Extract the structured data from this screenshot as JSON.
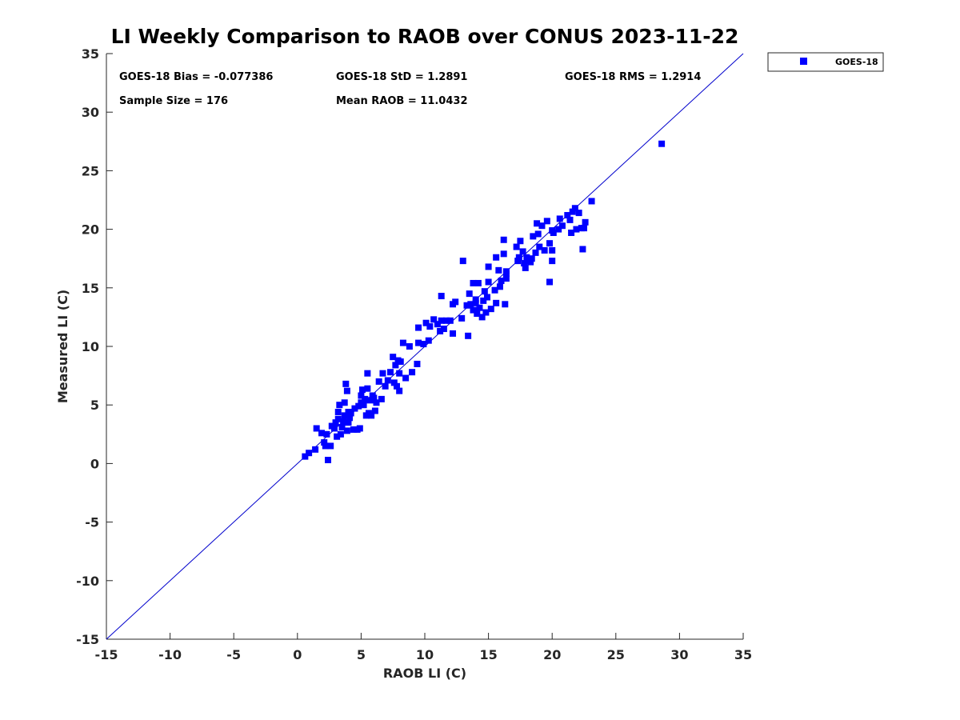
{
  "chart_data": {
    "type": "scatter",
    "title": "LI Weekly Comparison to RAOB over CONUS 2023-11-22",
    "xlabel": "RAOB LI (C)",
    "ylabel": "Measured LI (C)",
    "xlim": [
      -15,
      35
    ],
    "ylim": [
      -15,
      35
    ],
    "xticks": [
      -15,
      -10,
      -5,
      0,
      5,
      10,
      15,
      20,
      25,
      30,
      35
    ],
    "yticks": [
      -15,
      -10,
      -5,
      0,
      5,
      10,
      15,
      20,
      25,
      30,
      35
    ],
    "grid": false,
    "reference_line": {
      "label": "1:1 line",
      "from": [
        -15,
        -15
      ],
      "to": [
        35,
        35
      ],
      "color": "#0000cc"
    },
    "legend": {
      "position": "outside-top-right",
      "entries": [
        "GOES-18"
      ]
    },
    "stats": {
      "bias": "GOES-18 Bias = -0.077386",
      "std": "GOES-18 StD = 1.2891",
      "rms": "GOES-18 RMS = 1.2914",
      "sample_size": "Sample Size = 176",
      "mean_raob": "Mean RAOB = 11.0432"
    },
    "series": [
      {
        "name": "GOES-18",
        "color": "#0000ff",
        "marker": "square",
        "points": [
          [
            0.6,
            0.6
          ],
          [
            0.9,
            0.9
          ],
          [
            1.4,
            1.2
          ],
          [
            1.5,
            3.0
          ],
          [
            1.9,
            2.6
          ],
          [
            2.1,
            1.8
          ],
          [
            2.2,
            1.5
          ],
          [
            2.3,
            2.5
          ],
          [
            2.4,
            0.3
          ],
          [
            2.6,
            1.5
          ],
          [
            2.7,
            3.2
          ],
          [
            2.9,
            3.0
          ],
          [
            3.0,
            3.5
          ],
          [
            3.1,
            2.3
          ],
          [
            3.2,
            3.8
          ],
          [
            3.2,
            4.4
          ],
          [
            3.3,
            5.0
          ],
          [
            3.4,
            2.5
          ],
          [
            3.5,
            3.1
          ],
          [
            3.6,
            3.6
          ],
          [
            3.7,
            4.1
          ],
          [
            3.7,
            5.2
          ],
          [
            3.8,
            6.8
          ],
          [
            3.9,
            2.8
          ],
          [
            3.9,
            6.2
          ],
          [
            4.0,
            3.5
          ],
          [
            4.0,
            4.4
          ],
          [
            4.1,
            3.9
          ],
          [
            4.2,
            4.3
          ],
          [
            4.4,
            2.9
          ],
          [
            4.5,
            4.7
          ],
          [
            4.7,
            2.9
          ],
          [
            4.8,
            4.9
          ],
          [
            4.9,
            3.0
          ],
          [
            5.0,
            5.2
          ],
          [
            5.0,
            5.8
          ],
          [
            5.1,
            6.3
          ],
          [
            5.2,
            5.0
          ],
          [
            5.3,
            5.5
          ],
          [
            5.4,
            4.1
          ],
          [
            5.5,
            6.4
          ],
          [
            5.5,
            7.7
          ],
          [
            5.6,
            4.3
          ],
          [
            5.7,
            5.4
          ],
          [
            5.8,
            4.1
          ],
          [
            5.9,
            5.8
          ],
          [
            6.0,
            5.6
          ],
          [
            6.1,
            4.5
          ],
          [
            6.2,
            5.2
          ],
          [
            6.4,
            7.0
          ],
          [
            6.6,
            5.5
          ],
          [
            6.7,
            7.7
          ],
          [
            6.9,
            6.6
          ],
          [
            7.1,
            7.1
          ],
          [
            7.3,
            7.8
          ],
          [
            7.5,
            9.1
          ],
          [
            7.6,
            6.9
          ],
          [
            7.7,
            8.4
          ],
          [
            7.8,
            6.6
          ],
          [
            7.9,
            8.8
          ],
          [
            8.0,
            7.7
          ],
          [
            8.0,
            6.2
          ],
          [
            8.1,
            8.7
          ],
          [
            8.3,
            10.3
          ],
          [
            8.5,
            7.3
          ],
          [
            8.8,
            10.0
          ],
          [
            9.0,
            7.8
          ],
          [
            9.4,
            8.5
          ],
          [
            9.5,
            10.3
          ],
          [
            9.5,
            11.6
          ],
          [
            9.9,
            10.2
          ],
          [
            10.1,
            12.0
          ],
          [
            10.3,
            10.5
          ],
          [
            10.4,
            11.7
          ],
          [
            10.7,
            12.3
          ],
          [
            11.0,
            11.9
          ],
          [
            11.2,
            11.3
          ],
          [
            11.3,
            12.2
          ],
          [
            11.3,
            14.3
          ],
          [
            11.5,
            11.5
          ],
          [
            11.7,
            12.2
          ],
          [
            12.0,
            12.2
          ],
          [
            12.2,
            13.6
          ],
          [
            12.2,
            11.1
          ],
          [
            12.4,
            13.8
          ],
          [
            12.9,
            12.4
          ],
          [
            13.0,
            17.3
          ],
          [
            13.3,
            13.5
          ],
          [
            13.4,
            10.9
          ],
          [
            13.5,
            14.5
          ],
          [
            13.6,
            13.6
          ],
          [
            13.8,
            13.1
          ],
          [
            13.8,
            15.4
          ],
          [
            14.0,
            13.7
          ],
          [
            14.0,
            14.0
          ],
          [
            14.1,
            12.8
          ],
          [
            14.2,
            15.4
          ],
          [
            14.3,
            13.3
          ],
          [
            14.5,
            12.5
          ],
          [
            14.6,
            13.9
          ],
          [
            14.7,
            14.7
          ],
          [
            14.8,
            12.9
          ],
          [
            14.9,
            14.2
          ],
          [
            15.0,
            15.5
          ],
          [
            15.0,
            16.8
          ],
          [
            15.2,
            13.2
          ],
          [
            15.5,
            14.8
          ],
          [
            15.6,
            17.6
          ],
          [
            15.6,
            13.7
          ],
          [
            15.8,
            16.5
          ],
          [
            15.9,
            15.1
          ],
          [
            16.0,
            15.6
          ],
          [
            16.2,
            17.9
          ],
          [
            16.2,
            19.1
          ],
          [
            16.3,
            13.6
          ],
          [
            16.4,
            15.8
          ],
          [
            16.4,
            16.2
          ],
          [
            16.4,
            16.4
          ],
          [
            17.2,
            18.5
          ],
          [
            17.3,
            17.3
          ],
          [
            17.4,
            17.6
          ],
          [
            17.5,
            19.0
          ],
          [
            17.7,
            18.1
          ],
          [
            17.8,
            17.1
          ],
          [
            17.9,
            16.7
          ],
          [
            18.0,
            17.6
          ],
          [
            18.1,
            17.3
          ],
          [
            18.3,
            17.2
          ],
          [
            18.4,
            17.5
          ],
          [
            18.5,
            19.4
          ],
          [
            18.7,
            18.0
          ],
          [
            18.8,
            20.5
          ],
          [
            18.9,
            19.6
          ],
          [
            19.0,
            18.5
          ],
          [
            19.2,
            20.3
          ],
          [
            19.4,
            18.2
          ],
          [
            19.6,
            20.7
          ],
          [
            19.8,
            18.8
          ],
          [
            19.8,
            15.5
          ],
          [
            20.0,
            19.9
          ],
          [
            20.0,
            18.2
          ],
          [
            20.0,
            17.3
          ],
          [
            20.1,
            19.7
          ],
          [
            20.5,
            20.0
          ],
          [
            20.6,
            20.9
          ],
          [
            20.8,
            20.3
          ],
          [
            21.2,
            21.2
          ],
          [
            21.4,
            20.8
          ],
          [
            21.5,
            19.7
          ],
          [
            21.6,
            21.5
          ],
          [
            21.8,
            21.8
          ],
          [
            21.9,
            20.0
          ],
          [
            22.1,
            21.4
          ],
          [
            22.3,
            20.1
          ],
          [
            22.4,
            18.3
          ],
          [
            22.5,
            20.1
          ],
          [
            22.6,
            20.6
          ],
          [
            23.1,
            22.4
          ],
          [
            28.6,
            27.3
          ]
        ]
      }
    ]
  }
}
